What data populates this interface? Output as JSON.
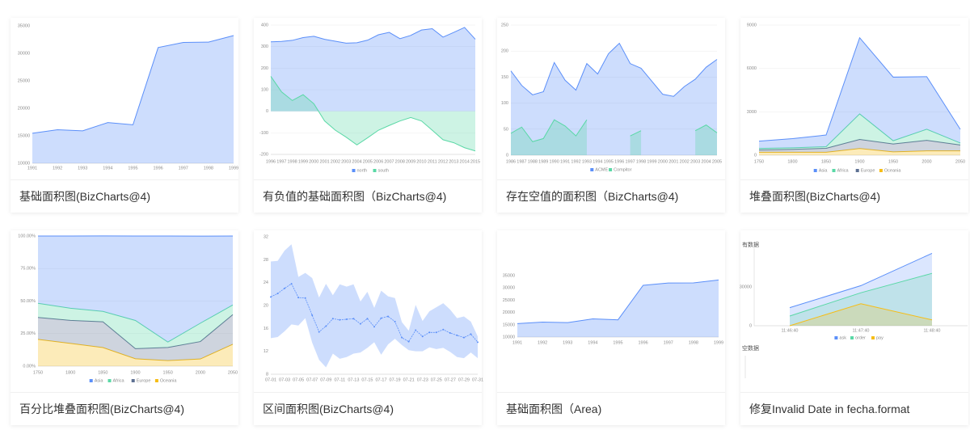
{
  "chart_data": [
    {
      "type": "area",
      "title": "基础面积图(BizCharts@4)",
      "color": "#5b8ff9",
      "categories": [
        "1991",
        "1992",
        "1993",
        "1994",
        "1995",
        "1996",
        "1997",
        "1998",
        "1999"
      ],
      "values": [
        15468,
        16100,
        15900,
        17409,
        17000,
        31056,
        31982,
        32040,
        33233
      ],
      "ylim": [
        10000,
        35000
      ],
      "yticks": [
        10000,
        15000,
        20000,
        25000,
        30000,
        35000
      ],
      "grid": false
    },
    {
      "type": "area",
      "title": "有负值的基础面积图（BizCharts@4)",
      "categories": [
        "1996",
        "1997",
        "1998",
        "1999",
        "2000",
        "2001",
        "2002",
        "2003",
        "2004",
        "2005",
        "2006",
        "2007",
        "2008",
        "2009",
        "2010",
        "2011",
        "2012",
        "2013",
        "2014",
        "2015"
      ],
      "series": [
        {
          "name": "north",
          "color": "#5b8ff9",
          "values": [
            322,
            324,
            329,
            342,
            348,
            334,
            325,
            316,
            318,
            330,
            355,
            366,
            337,
            352,
            377,
            383,
            344,
            366,
            389,
            334
          ]
        },
        {
          "name": "south",
          "color": "#5ad8a6",
          "values": [
            162,
            90,
            50,
            77,
            35,
            -45,
            -88,
            -120,
            -156,
            -123,
            -88,
            -66,
            -45,
            -29,
            -45,
            -88,
            -132,
            -146,
            -169,
            -184
          ]
        }
      ],
      "ylim": [
        -200,
        400
      ],
      "yticks": [
        -200,
        -100,
        0,
        100,
        200,
        300,
        400
      ],
      "grid": true
    },
    {
      "type": "area",
      "title": "存在空值的面积图（BizCharts@4)",
      "categories": [
        "1986",
        "1987",
        "1988",
        "1989",
        "1990",
        "1991",
        "1992",
        "1993",
        "1994",
        "1995",
        "1996",
        "1997",
        "1998",
        "1999",
        "2000",
        "2001",
        "2002",
        "2003",
        "2004",
        "2005"
      ],
      "series": [
        {
          "name": "ACME",
          "color": "#5b8ff9",
          "values": [
            162,
            134,
            116,
            122,
            178,
            144,
            125,
            176,
            156,
            195,
            215,
            176,
            167,
            142,
            117,
            113,
            132,
            146,
            169,
            184
          ]
        },
        {
          "name": "Compitor",
          "color": "#5ad8a6",
          "values": [
            42,
            54,
            26,
            32,
            68,
            56,
            37,
            68,
            null,
            null,
            null,
            37,
            47,
            null,
            null,
            null,
            null,
            47,
            58,
            43
          ]
        }
      ],
      "ylim": [
        0,
        250
      ],
      "yticks": [
        0,
        50,
        100,
        150,
        200,
        250
      ],
      "grid": true
    },
    {
      "type": "area",
      "title": "堆叠面积图(BizCharts@4)",
      "stacked": true,
      "categories": [
        "1750",
        "1800",
        "1850",
        "1900",
        "1950",
        "2000",
        "2050"
      ],
      "series": [
        {
          "name": "Asia",
          "color": "#5b8ff9",
          "values": [
            502,
            635,
            809,
            5268,
            4400,
            3634,
            947
          ]
        },
        {
          "name": "Africa",
          "color": "#5ad8a6",
          "values": [
            106,
            107,
            111,
            1766,
            221,
            767,
            133
          ]
        },
        {
          "name": "Europe",
          "color": "#5d7092",
          "values": [
            163,
            203,
            276,
            628,
            547,
            729,
            408
          ]
        },
        {
          "name": "Oceania",
          "color": "#f6bd16",
          "values": [
            200,
            200,
            200,
            460,
            230,
            300,
            300
          ]
        }
      ],
      "ylim": [
        0,
        9000
      ],
      "yticks": [
        0,
        3000,
        6000,
        9000
      ],
      "grid": true
    },
    {
      "type": "area",
      "title": "百分比堆叠面积图(BizCharts@4)",
      "stacked": true,
      "categories": [
        "1750",
        "1800",
        "1850",
        "1900",
        "1950",
        "2000",
        "2050"
      ],
      "series": [
        {
          "name": "Asia",
          "color": "#5b8ff9",
          "values": [
            51.7,
            55.5,
            58.0,
            64.9,
            81.5,
            66.9,
            53.0
          ]
        },
        {
          "name": "Africa",
          "color": "#5ad8a6",
          "values": [
            10.9,
            9.3,
            8.0,
            21.7,
            4.1,
            14.1,
            7.4
          ]
        },
        {
          "name": "Europe",
          "color": "#5d7092",
          "values": [
            16.8,
            17.7,
            19.8,
            7.7,
            10.1,
            13.4,
            22.8
          ]
        },
        {
          "name": "Oceania",
          "color": "#f6bd16",
          "values": [
            20.6,
            17.5,
            14.3,
            5.7,
            4.3,
            5.5,
            16.8
          ]
        }
      ],
      "ylim": [
        0,
        100
      ],
      "yticks": [
        {
          "value": 0,
          "label": "0.00%"
        },
        {
          "value": 25,
          "label": "25.00%"
        },
        {
          "value": 50,
          "label": "50.00%"
        },
        {
          "value": 75,
          "label": "75.00%"
        },
        {
          "value": 100,
          "label": "100.00%"
        }
      ],
      "grid": true
    },
    {
      "type": "range-area",
      "title": "区间面积图(BizCharts@4)",
      "color": "#5b8ff9",
      "categories": [
        "07-01",
        null,
        "07-03",
        null,
        "07-05",
        null,
        "07-07",
        null,
        "07-09",
        null,
        "07-11",
        null,
        "07-13",
        null,
        "07-15",
        null,
        "07-17",
        null,
        "07-19",
        null,
        "07-21",
        null,
        "07-23",
        null,
        "07-25",
        null,
        "07-27",
        null,
        "07-29",
        null,
        "07-31"
      ],
      "values": [
        21.5,
        22.1,
        23,
        23.8,
        21.4,
        21.3,
        18.3,
        15.4,
        16.4,
        17.7,
        17.5,
        17.6,
        17.7,
        16.8,
        17.7,
        16.3,
        17.8,
        18.1,
        17.2,
        14.4,
        13.7,
        15.7,
        14.6,
        15.3,
        15.3,
        15.8,
        15.2,
        14.8,
        14.4,
        15,
        13.6
      ],
      "low": [
        14.3,
        14.5,
        15.5,
        16.7,
        16.5,
        17.8,
        13.5,
        10.5,
        9.2,
        11.6,
        10.7,
        11.0,
        11.6,
        11.8,
        12.6,
        13.6,
        11.4,
        13.2,
        14.2,
        13.1,
        12.2,
        12.0,
        12.0,
        12.7,
        12.4,
        12.6,
        11.9,
        11.0,
        10.8,
        11.8,
        10.8
      ],
      "high": [
        27.7,
        27.8,
        29.6,
        30.7,
        25.0,
        25.7,
        24.8,
        21.4,
        23.8,
        21.8,
        23.7,
        23.3,
        23.7,
        20.7,
        22.4,
        19.6,
        22.6,
        21.6,
        21.3,
        17.1,
        15.6,
        20.1,
        17.3,
        19.0,
        19.7,
        20.4,
        19.3,
        17.8,
        18.1,
        17.2,
        14.6
      ],
      "ylim": [
        8,
        32
      ],
      "yticks": [
        8,
        12,
        16,
        20,
        24,
        28,
        32
      ],
      "grid": false
    },
    {
      "type": "area",
      "title": "基础面积图（Area)",
      "color": "#5b8ff9",
      "categories": [
        "1991",
        "1992",
        "1993",
        "1994",
        "1995",
        "1996",
        "1997",
        "1998",
        "1999"
      ],
      "values": [
        15468,
        16100,
        15900,
        17409,
        17000,
        31056,
        31982,
        32040,
        33233
      ],
      "ylim": [
        10000,
        35000
      ],
      "yticks": [
        10000,
        15000,
        20000,
        25000,
        30000,
        35000
      ],
      "grid": false
    },
    {
      "type": "multi",
      "title": "修复Invalid Date in fecha.format",
      "charts": [
        {
          "type": "area",
          "title": "有数据",
          "categories": [
            "11:46:40",
            "11:47:40",
            "11:48:40"
          ],
          "series": [
            {
              "name": "ask",
              "color": "#5b8ff9",
              "values": [
                14000,
                31000,
                56000
              ]
            },
            {
              "name": "order",
              "color": "#5ad8a6",
              "values": [
                7500,
                25500,
                40500
              ]
            },
            {
              "name": "pay",
              "color": "#f6bd16",
              "values": [
                0,
                17000,
                4500
              ]
            }
          ],
          "ylim": [
            0,
            60000
          ],
          "yticks": [
            0,
            30000
          ],
          "grid": false
        },
        {
          "type": "empty",
          "title": "空数据"
        }
      ]
    }
  ]
}
